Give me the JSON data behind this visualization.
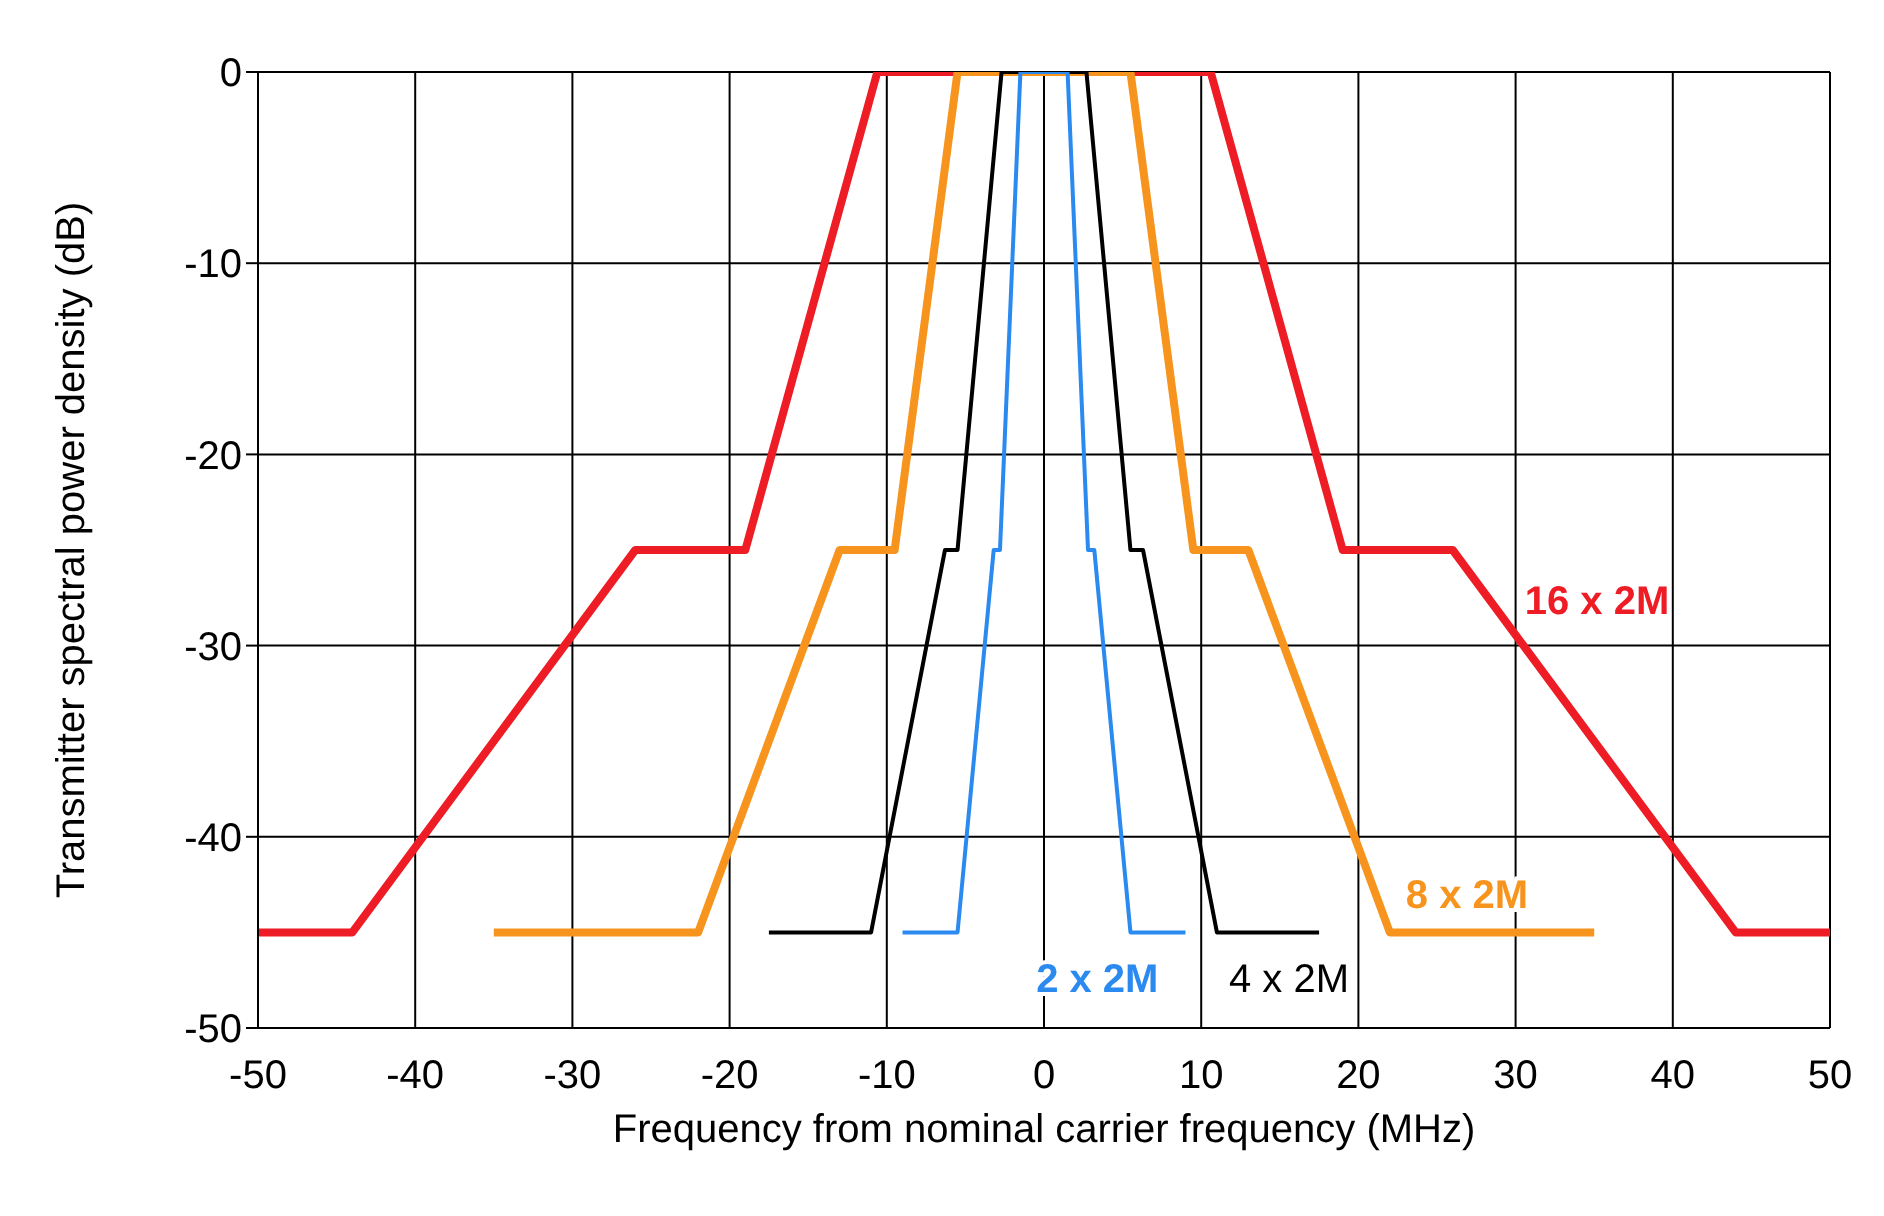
{
  "chart_data": {
    "type": "line",
    "xlabel": "Frequency from nominal carrier frequency (MHz)",
    "ylabel": "Transmitter spectral power density (dB)",
    "xlim": [
      -50,
      50
    ],
    "xticks": [
      -50,
      -40,
      -30,
      -20,
      -10,
      0,
      10,
      20,
      30,
      40,
      50
    ],
    "ylim": [
      -50,
      0
    ],
    "yticks": [
      -50,
      -40,
      -30,
      -20,
      -10,
      0
    ],
    "grid": true,
    "legend": false,
    "marker": "none",
    "line_style": "solid",
    "series": [
      {
        "name": "16 x 2M",
        "color": "#ee1c25",
        "x": [
          -50,
          -44,
          -26,
          -19,
          -10.6,
          10.6,
          19,
          26,
          44,
          50
        ],
        "values": [
          -45,
          -45,
          -25,
          -25,
          0,
          0,
          -25,
          -25,
          -45,
          -45
        ]
      },
      {
        "name": "8 x 2M",
        "color": "#f7941d",
        "x": [
          -35,
          -22,
          -13,
          -9.5,
          -5.5,
          5.5,
          9.5,
          13,
          22,
          35
        ],
        "values": [
          -45,
          -45,
          -25,
          -25,
          0,
          0,
          -25,
          -25,
          -45,
          -45
        ]
      },
      {
        "name": "4 x 2M",
        "color": "#000000",
        "x": [
          -17.5,
          -11,
          -6.3,
          -5.5,
          -2.7,
          2.7,
          5.5,
          6.3,
          11,
          17.5
        ],
        "values": [
          -45,
          -45,
          -25,
          -25,
          0,
          0,
          -25,
          -25,
          -45,
          -45
        ]
      },
      {
        "name": "2 x 2M",
        "color": "#2a8af0",
        "x": [
          -9,
          -5.5,
          -3.2,
          -2.8,
          -1.5,
          1.5,
          2.8,
          3.2,
          5.5,
          9
        ],
        "values": [
          -45,
          -45,
          -25,
          -25,
          0,
          0,
          -25,
          -25,
          -45,
          -45
        ]
      }
    ]
  }
}
